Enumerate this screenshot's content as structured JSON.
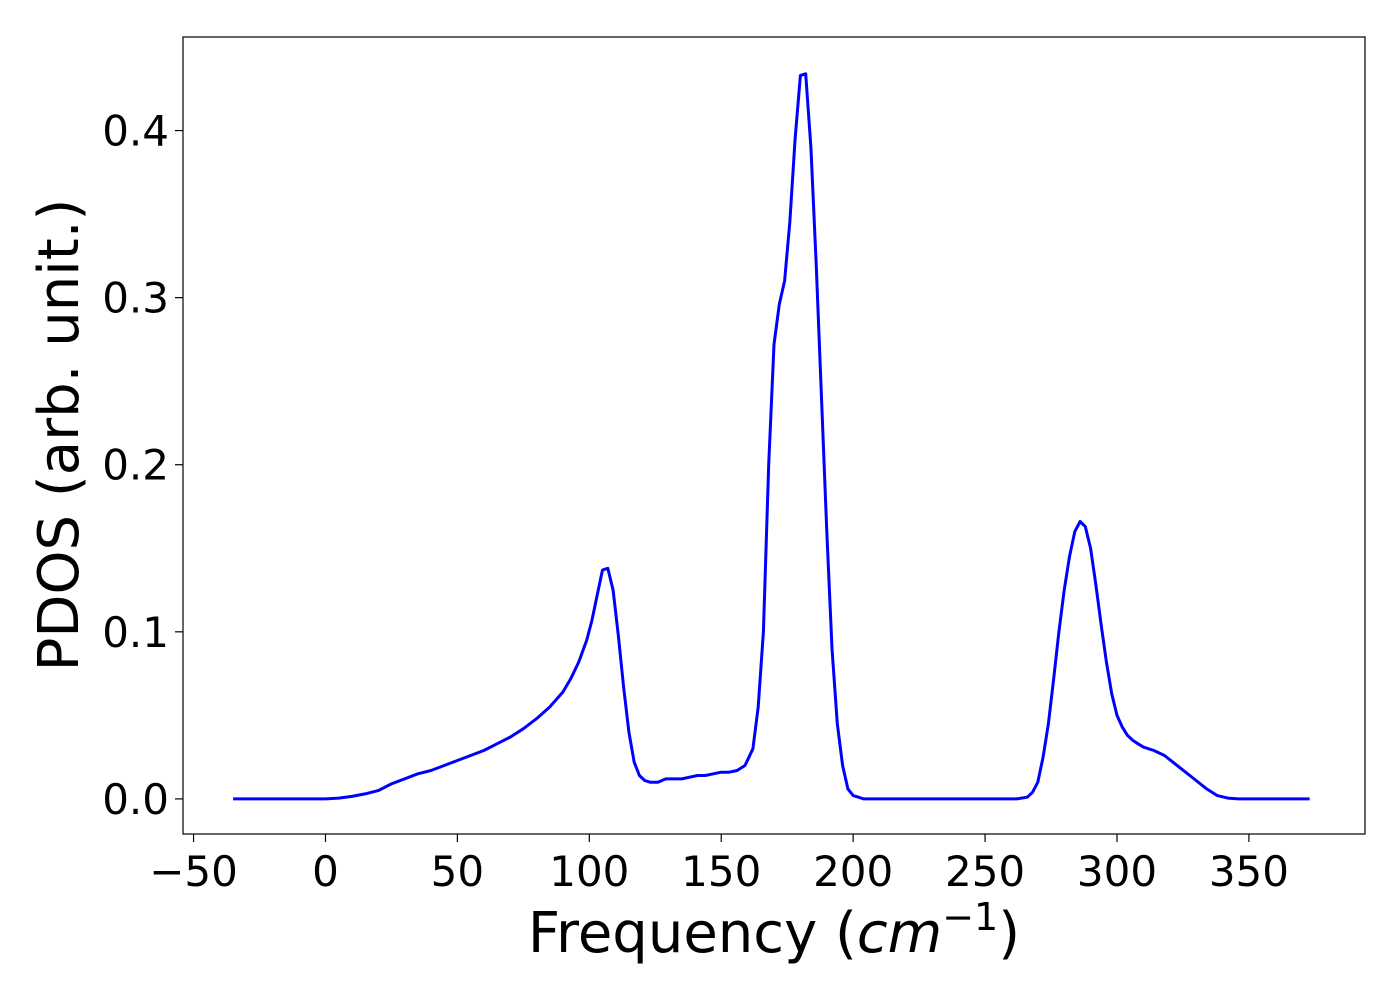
{
  "chart_data": {
    "type": "line",
    "title": "",
    "xlabel": "Frequency (",
    "xlabel_math": "cm",
    "xlabel_exp": "−1",
    "xlabel_close": ")",
    "ylabel": "PDOS (arb. unit.)",
    "xlim": [
      -54,
      394
    ],
    "ylim": [
      -0.021,
      0.456
    ],
    "grid": false,
    "line_color": "#0000ff",
    "x_ticks": [
      -50,
      0,
      50,
      100,
      150,
      200,
      250,
      300,
      350
    ],
    "x_tick_labels": [
      "−50",
      "0",
      "50",
      "100",
      "150",
      "200",
      "250",
      "300",
      "350"
    ],
    "y_ticks": [
      0.0,
      0.1,
      0.2,
      0.3,
      0.4
    ],
    "y_tick_labels": [
      "0.0",
      "0.1",
      "0.2",
      "0.3",
      "0.4"
    ],
    "series": [
      {
        "x": [
          -35,
          -20,
          0,
          5,
          10,
          15,
          20,
          25,
          30,
          35,
          40,
          45,
          50,
          55,
          60,
          65,
          70,
          75,
          80,
          85,
          90,
          93,
          96,
          99,
          101,
          103,
          105,
          107,
          109,
          111,
          113,
          115,
          117,
          119,
          121,
          123,
          126,
          129,
          132,
          135,
          138,
          141,
          144,
          147,
          150,
          153,
          156,
          159,
          162,
          164,
          166,
          168,
          170,
          172,
          174,
          176,
          178,
          180,
          182,
          184,
          186,
          188,
          190,
          192,
          194,
          196,
          198,
          200,
          202,
          204,
          206,
          210,
          230,
          250,
          262,
          266,
          268,
          270,
          272,
          274,
          276,
          278,
          280,
          282,
          284,
          286,
          288,
          290,
          292,
          294,
          296,
          298,
          300,
          302,
          304,
          306,
          308,
          310,
          314,
          318,
          322,
          326,
          330,
          334,
          338,
          342,
          346,
          350,
          360,
          373
        ],
        "y": [
          0,
          0,
          0,
          0.0005,
          0.0015,
          0.003,
          0.005,
          0.009,
          0.012,
          0.015,
          0.017,
          0.02,
          0.023,
          0.026,
          0.029,
          0.033,
          0.037,
          0.042,
          0.048,
          0.055,
          0.064,
          0.072,
          0.082,
          0.095,
          0.107,
          0.122,
          0.137,
          0.138,
          0.125,
          0.098,
          0.067,
          0.04,
          0.022,
          0.014,
          0.011,
          0.01,
          0.01,
          0.012,
          0.012,
          0.012,
          0.013,
          0.014,
          0.014,
          0.015,
          0.016,
          0.016,
          0.017,
          0.02,
          0.03,
          0.055,
          0.1,
          0.2,
          0.272,
          0.296,
          0.31,
          0.345,
          0.395,
          0.433,
          0.434,
          0.39,
          0.32,
          0.24,
          0.16,
          0.09,
          0.045,
          0.02,
          0.006,
          0.002,
          0.001,
          0,
          0,
          0,
          0,
          0,
          0,
          0.001,
          0.004,
          0.01,
          0.025,
          0.045,
          0.072,
          0.1,
          0.125,
          0.145,
          0.16,
          0.166,
          0.163,
          0.15,
          0.128,
          0.104,
          0.082,
          0.063,
          0.05,
          0.043,
          0.038,
          0.035,
          0.033,
          0.031,
          0.029,
          0.026,
          0.021,
          0.016,
          0.011,
          0.006,
          0.002,
          0.0005,
          0,
          0,
          0,
          0
        ]
      }
    ]
  }
}
